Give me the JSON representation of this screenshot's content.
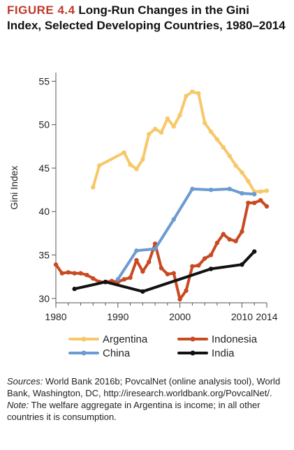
{
  "figure": {
    "number": "FIGURE 4.4",
    "title": "Long-Run Changes in the Gini Index, Selected Developing Countries, 1980–2014"
  },
  "notes": {
    "sources_label": "Sources:",
    "sources_text": "World Bank 2016b; PovcalNet (online analysis tool), World Bank, Washington, DC, http://iresearch.worldbank.org/PovcalNet/.",
    "note_label": "Note:",
    "note_text": "The welfare aggregate in Argentina is income; in all other countries it is consumption."
  },
  "chart_data": {
    "type": "line",
    "title": "Long-Run Changes in the Gini Index, Selected Developing Countries, 1980–2014",
    "xlabel": "",
    "ylabel": "Gini Index",
    "xlim": [
      1980,
      2014
    ],
    "ylim": [
      29.5,
      56
    ],
    "xticks": [
      1980,
      1990,
      2000,
      2010,
      2014
    ],
    "yticks": [
      30,
      35,
      40,
      45,
      50,
      55
    ],
    "grid": false,
    "legend": "bottom",
    "series": [
      {
        "name": "Argentina",
        "color": "#f7c86a",
        "points": [
          [
            1986,
            42.8
          ],
          [
            1987,
            45.3
          ],
          [
            1991,
            46.8
          ],
          [
            1992,
            45.4
          ],
          [
            1993,
            44.9
          ],
          [
            1994,
            46.0
          ],
          [
            1995,
            48.9
          ],
          [
            1996,
            49.5
          ],
          [
            1997,
            49.1
          ],
          [
            1998,
            50.7
          ],
          [
            1999,
            49.8
          ],
          [
            2000,
            51.1
          ],
          [
            2001,
            53.3
          ],
          [
            2002,
            53.8
          ],
          [
            2003,
            53.6
          ],
          [
            2004,
            50.2
          ],
          [
            2005,
            49.2
          ],
          [
            2006,
            48.3
          ],
          [
            2007,
            47.4
          ],
          [
            2008,
            46.4
          ],
          [
            2009,
            45.3
          ],
          [
            2010,
            44.5
          ],
          [
            2011,
            43.5
          ],
          [
            2012,
            42.3
          ],
          [
            2013,
            42.3
          ],
          [
            2014,
            42.4
          ]
        ]
      },
      {
        "name": "Indonesia",
        "color": "#c94a22",
        "points": [
          [
            1980,
            33.9
          ],
          [
            1981,
            32.9
          ],
          [
            1982,
            33.0
          ],
          [
            1983,
            32.9
          ],
          [
            1984,
            32.9
          ],
          [
            1985,
            32.7
          ],
          [
            1986,
            32.3
          ],
          [
            1987,
            31.9
          ],
          [
            1988,
            31.9
          ],
          [
            1989,
            32.0
          ],
          [
            1990,
            31.9
          ],
          [
            1991,
            32.2
          ],
          [
            1992,
            32.4
          ],
          [
            1993,
            34.4
          ],
          [
            1994,
            33.1
          ],
          [
            1995,
            34.2
          ],
          [
            1996,
            36.3
          ],
          [
            1997,
            33.5
          ],
          [
            1998,
            32.8
          ],
          [
            1999,
            32.9
          ],
          [
            2000,
            29.9
          ],
          [
            2001,
            30.9
          ],
          [
            2002,
            33.7
          ],
          [
            2003,
            33.8
          ],
          [
            2004,
            34.6
          ],
          [
            2005,
            35.0
          ],
          [
            2006,
            36.4
          ],
          [
            2007,
            37.4
          ],
          [
            2008,
            36.8
          ],
          [
            2009,
            36.6
          ],
          [
            2010,
            37.7
          ],
          [
            2011,
            41.0
          ],
          [
            2012,
            41.0
          ],
          [
            2013,
            41.3
          ],
          [
            2014,
            40.6
          ]
        ]
      },
      {
        "name": "China",
        "color": "#6b9bd1",
        "points": [
          [
            1990,
            32.2
          ],
          [
            1993,
            35.5
          ],
          [
            1996,
            35.7
          ],
          [
            1999,
            39.1
          ],
          [
            2002,
            42.6
          ],
          [
            2005,
            42.5
          ],
          [
            2008,
            42.6
          ],
          [
            2010,
            42.1
          ],
          [
            2012,
            42.0
          ]
        ]
      },
      {
        "name": "India",
        "color": "#111111",
        "points": [
          [
            1983,
            31.1
          ],
          [
            1988,
            31.9
          ],
          [
            1994,
            30.8
          ],
          [
            2005,
            33.4
          ],
          [
            2010,
            33.9
          ],
          [
            2012,
            35.4
          ]
        ]
      }
    ]
  }
}
